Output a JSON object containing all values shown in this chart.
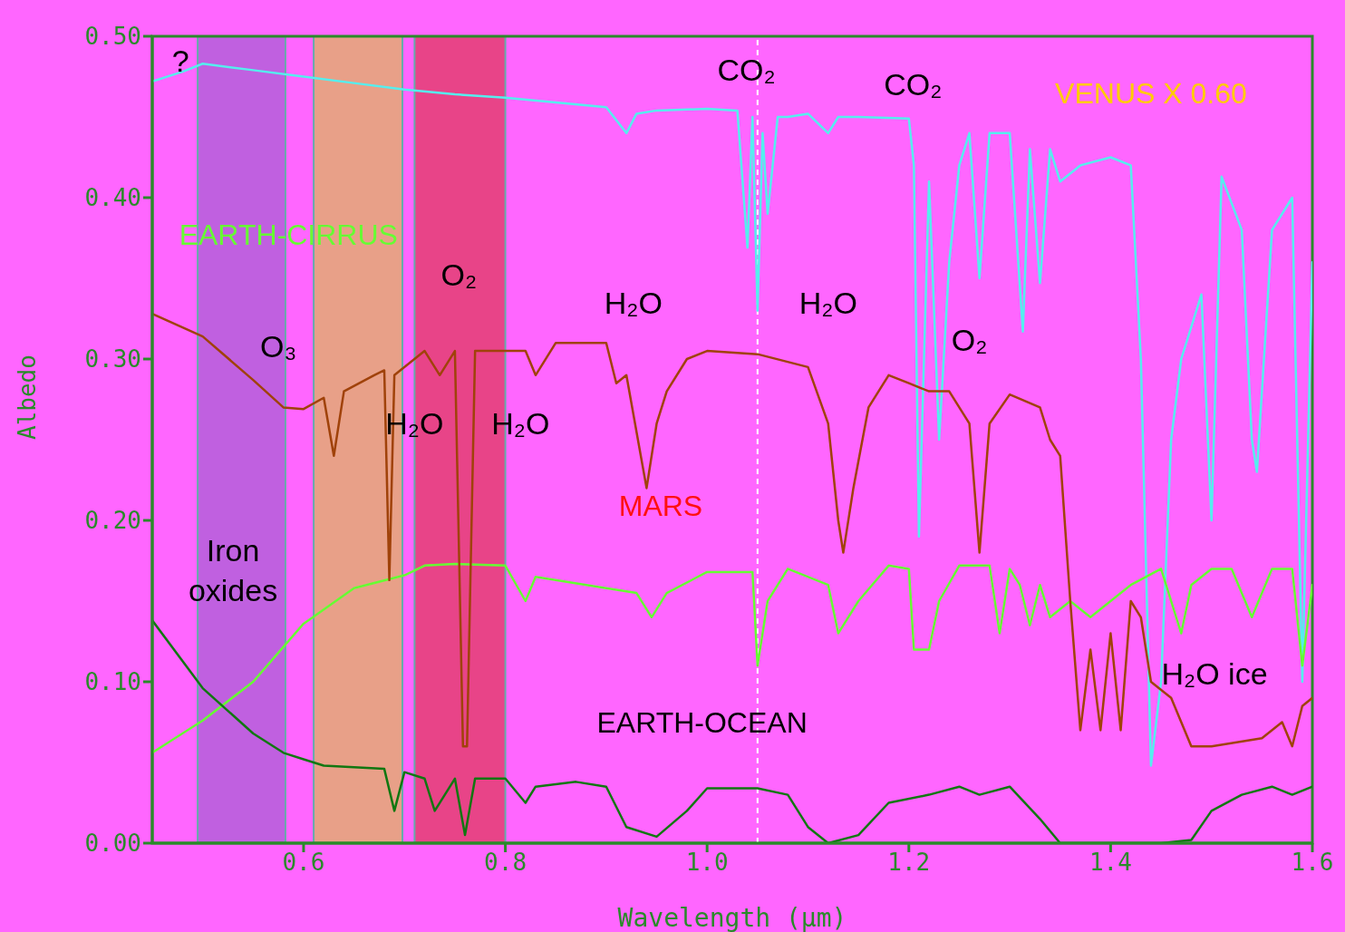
{
  "chart_data": {
    "type": "line",
    "xlabel": "Wavelength (μm)",
    "ylabel": "Albedo",
    "xlim": [
      0.45,
      1.6
    ],
    "xticks": [
      0.6,
      0.8,
      {
        "value": 1.0,
        "label": "1.0"
      },
      1.2,
      1.4,
      1.6
    ],
    "ylim": [
      0,
      0.5
    ],
    "yticks": [
      {
        "value": 0,
        "label": "0.00"
      },
      {
        "value": 0.1,
        "label": "0.10"
      },
      {
        "value": 0.2,
        "label": "0.20"
      },
      {
        "value": 0.3,
        "label": "0.30"
      },
      {
        "value": 0.4,
        "label": "0.40"
      },
      {
        "value": 0.5,
        "label": "0.50"
      }
    ],
    "series": [
      {
        "name": "VENUS X 0.60",
        "color": "#55eeee",
        "x": [
          0.45,
          0.48,
          0.5,
          0.55,
          0.6,
          0.65,
          0.7,
          0.75,
          0.8,
          0.85,
          0.9,
          0.92,
          0.93,
          0.95,
          1.0,
          1.03,
          1.04,
          1.045,
          1.05,
          1.055,
          1.06,
          1.07,
          1.08,
          1.1,
          1.12,
          1.13,
          1.15,
          1.2,
          1.205,
          1.21,
          1.215,
          1.22,
          1.23,
          1.24,
          1.25,
          1.26,
          1.27,
          1.28,
          1.3,
          1.313,
          1.32,
          1.33,
          1.34,
          1.35,
          1.37,
          1.4,
          1.42,
          1.43,
          1.44,
          1.45,
          1.46,
          1.47,
          1.49,
          1.5,
          1.51,
          1.53,
          1.54,
          1.545,
          1.56,
          1.58,
          1.59,
          1.6
        ],
        "values": [
          0.472,
          0.478,
          0.483,
          0.479,
          0.475,
          0.471,
          0.467,
          0.464,
          0.462,
          0.459,
          0.456,
          0.44,
          0.452,
          0.454,
          0.455,
          0.454,
          0.369,
          0.45,
          0.33,
          0.44,
          0.39,
          0.45,
          0.45,
          0.452,
          0.44,
          0.45,
          0.45,
          0.449,
          0.42,
          0.19,
          0.3,
          0.41,
          0.25,
          0.36,
          0.42,
          0.44,
          0.35,
          0.44,
          0.44,
          0.317,
          0.43,
          0.347,
          0.43,
          0.41,
          0.42,
          0.425,
          0.42,
          0.3,
          0.048,
          0.1,
          0.25,
          0.3,
          0.34,
          0.2,
          0.413,
          0.38,
          0.25,
          0.23,
          0.38,
          0.4,
          0.1,
          0.36
        ]
      },
      {
        "name": "EARTH-CIRRUS",
        "color": "#66ff33",
        "x": [
          0.45,
          0.5,
          0.55,
          0.6,
          0.65,
          0.7,
          0.72,
          0.75,
          0.8,
          0.82,
          0.83,
          0.9,
          0.93,
          0.945,
          0.96,
          1.0,
          1.045,
          1.05,
          1.06,
          1.08,
          1.12,
          1.13,
          1.15,
          1.18,
          1.2,
          1.205,
          1.22,
          1.23,
          1.25,
          1.28,
          1.29,
          1.3,
          1.31,
          1.32,
          1.33,
          1.34,
          1.36,
          1.38,
          1.4,
          1.42,
          1.45,
          1.47,
          1.48,
          1.5,
          1.52,
          1.54,
          1.56,
          1.58,
          1.59,
          1.6
        ],
        "values": [
          0.056,
          0.076,
          0.1,
          0.136,
          0.158,
          0.166,
          0.172,
          0.173,
          0.172,
          0.15,
          0.165,
          0.158,
          0.155,
          0.14,
          0.155,
          0.168,
          0.168,
          0.11,
          0.15,
          0.17,
          0.16,
          0.13,
          0.15,
          0.172,
          0.17,
          0.12,
          0.12,
          0.15,
          0.172,
          0.172,
          0.13,
          0.17,
          0.16,
          0.135,
          0.16,
          0.14,
          0.15,
          0.14,
          0.15,
          0.16,
          0.17,
          0.13,
          0.16,
          0.17,
          0.17,
          0.14,
          0.17,
          0.17,
          0.11,
          0.16
        ]
      },
      {
        "name": "MARS",
        "color": "#a0420a",
        "x": [
          0.45,
          0.5,
          0.55,
          0.58,
          0.6,
          0.62,
          0.63,
          0.64,
          0.67,
          0.68,
          0.685,
          0.69,
          0.72,
          0.735,
          0.75,
          0.758,
          0.762,
          0.77,
          0.82,
          0.83,
          0.85,
          0.9,
          0.91,
          0.92,
          0.94,
          0.95,
          0.96,
          0.98,
          1.0,
          1.05,
          1.1,
          1.12,
          1.13,
          1.135,
          1.145,
          1.16,
          1.18,
          1.2,
          1.22,
          1.24,
          1.26,
          1.27,
          1.28,
          1.3,
          1.33,
          1.34,
          1.35,
          1.36,
          1.37,
          1.38,
          1.39,
          1.4,
          1.41,
          1.42,
          1.43,
          1.44,
          1.46,
          1.48,
          1.5,
          1.55,
          1.57,
          1.58,
          1.59,
          1.6
        ],
        "values": [
          0.328,
          0.314,
          0.287,
          0.27,
          0.269,
          0.276,
          0.24,
          0.28,
          0.29,
          0.293,
          0.163,
          0.29,
          0.305,
          0.29,
          0.305,
          0.06,
          0.06,
          0.305,
          0.305,
          0.29,
          0.31,
          0.31,
          0.285,
          0.29,
          0.22,
          0.26,
          0.28,
          0.3,
          0.305,
          0.303,
          0.295,
          0.26,
          0.2,
          0.18,
          0.22,
          0.27,
          0.29,
          0.285,
          0.28,
          0.28,
          0.26,
          0.18,
          0.26,
          0.278,
          0.27,
          0.25,
          0.24,
          0.15,
          0.07,
          0.12,
          0.07,
          0.13,
          0.07,
          0.15,
          0.14,
          0.1,
          0.09,
          0.06,
          0.06,
          0.065,
          0.075,
          0.06,
          0.085,
          0.09
        ]
      },
      {
        "name": "EARTH-OCEAN",
        "color": "#117711",
        "x": [
          0.45,
          0.5,
          0.55,
          0.58,
          0.6,
          0.62,
          0.65,
          0.68,
          0.69,
          0.7,
          0.72,
          0.73,
          0.75,
          0.76,
          0.77,
          0.8,
          0.82,
          0.83,
          0.87,
          0.9,
          0.92,
          0.95,
          0.98,
          1.0,
          1.05,
          1.08,
          1.1,
          1.12,
          1.15,
          1.18,
          1.22,
          1.25,
          1.27,
          1.3,
          1.33,
          1.35,
          1.4,
          1.45,
          1.48,
          1.5,
          1.53,
          1.56,
          1.58,
          1.6
        ],
        "values": [
          0.138,
          0.096,
          0.068,
          0.056,
          0.052,
          0.048,
          0.047,
          0.046,
          0.02,
          0.044,
          0.04,
          0.02,
          0.04,
          0.005,
          0.04,
          0.04,
          0.025,
          0.035,
          0.038,
          0.035,
          0.01,
          0.004,
          0.02,
          0.034,
          0.034,
          0.03,
          0.01,
          0,
          0.005,
          0.025,
          0.03,
          0.035,
          0.03,
          0.035,
          0.015,
          0,
          0,
          0,
          0.002,
          0.02,
          0.03,
          0.035,
          0.03,
          0.035
        ]
      }
    ],
    "bands": [
      {
        "axis": "x",
        "from": 0.495,
        "to": 0.582,
        "color": "#c060e0"
      },
      {
        "axis": "x",
        "from": 0.61,
        "to": 0.698,
        "color": "#e8a088"
      },
      {
        "axis": "x",
        "from": 0.71,
        "to": 0.8,
        "color": "#e84488"
      }
    ],
    "ref_lines": [
      {
        "axis": "x",
        "value": 1.05,
        "color": "#ffffff",
        "line_style": "dashed"
      }
    ],
    "annotations": [
      "?",
      "CO₂",
      "CO₂",
      "O₂",
      "H₂O",
      "H₂O",
      "O₃",
      "O₂",
      "H₂O",
      "H₂O",
      "Iron oxides",
      "H₂O ice"
    ]
  }
}
